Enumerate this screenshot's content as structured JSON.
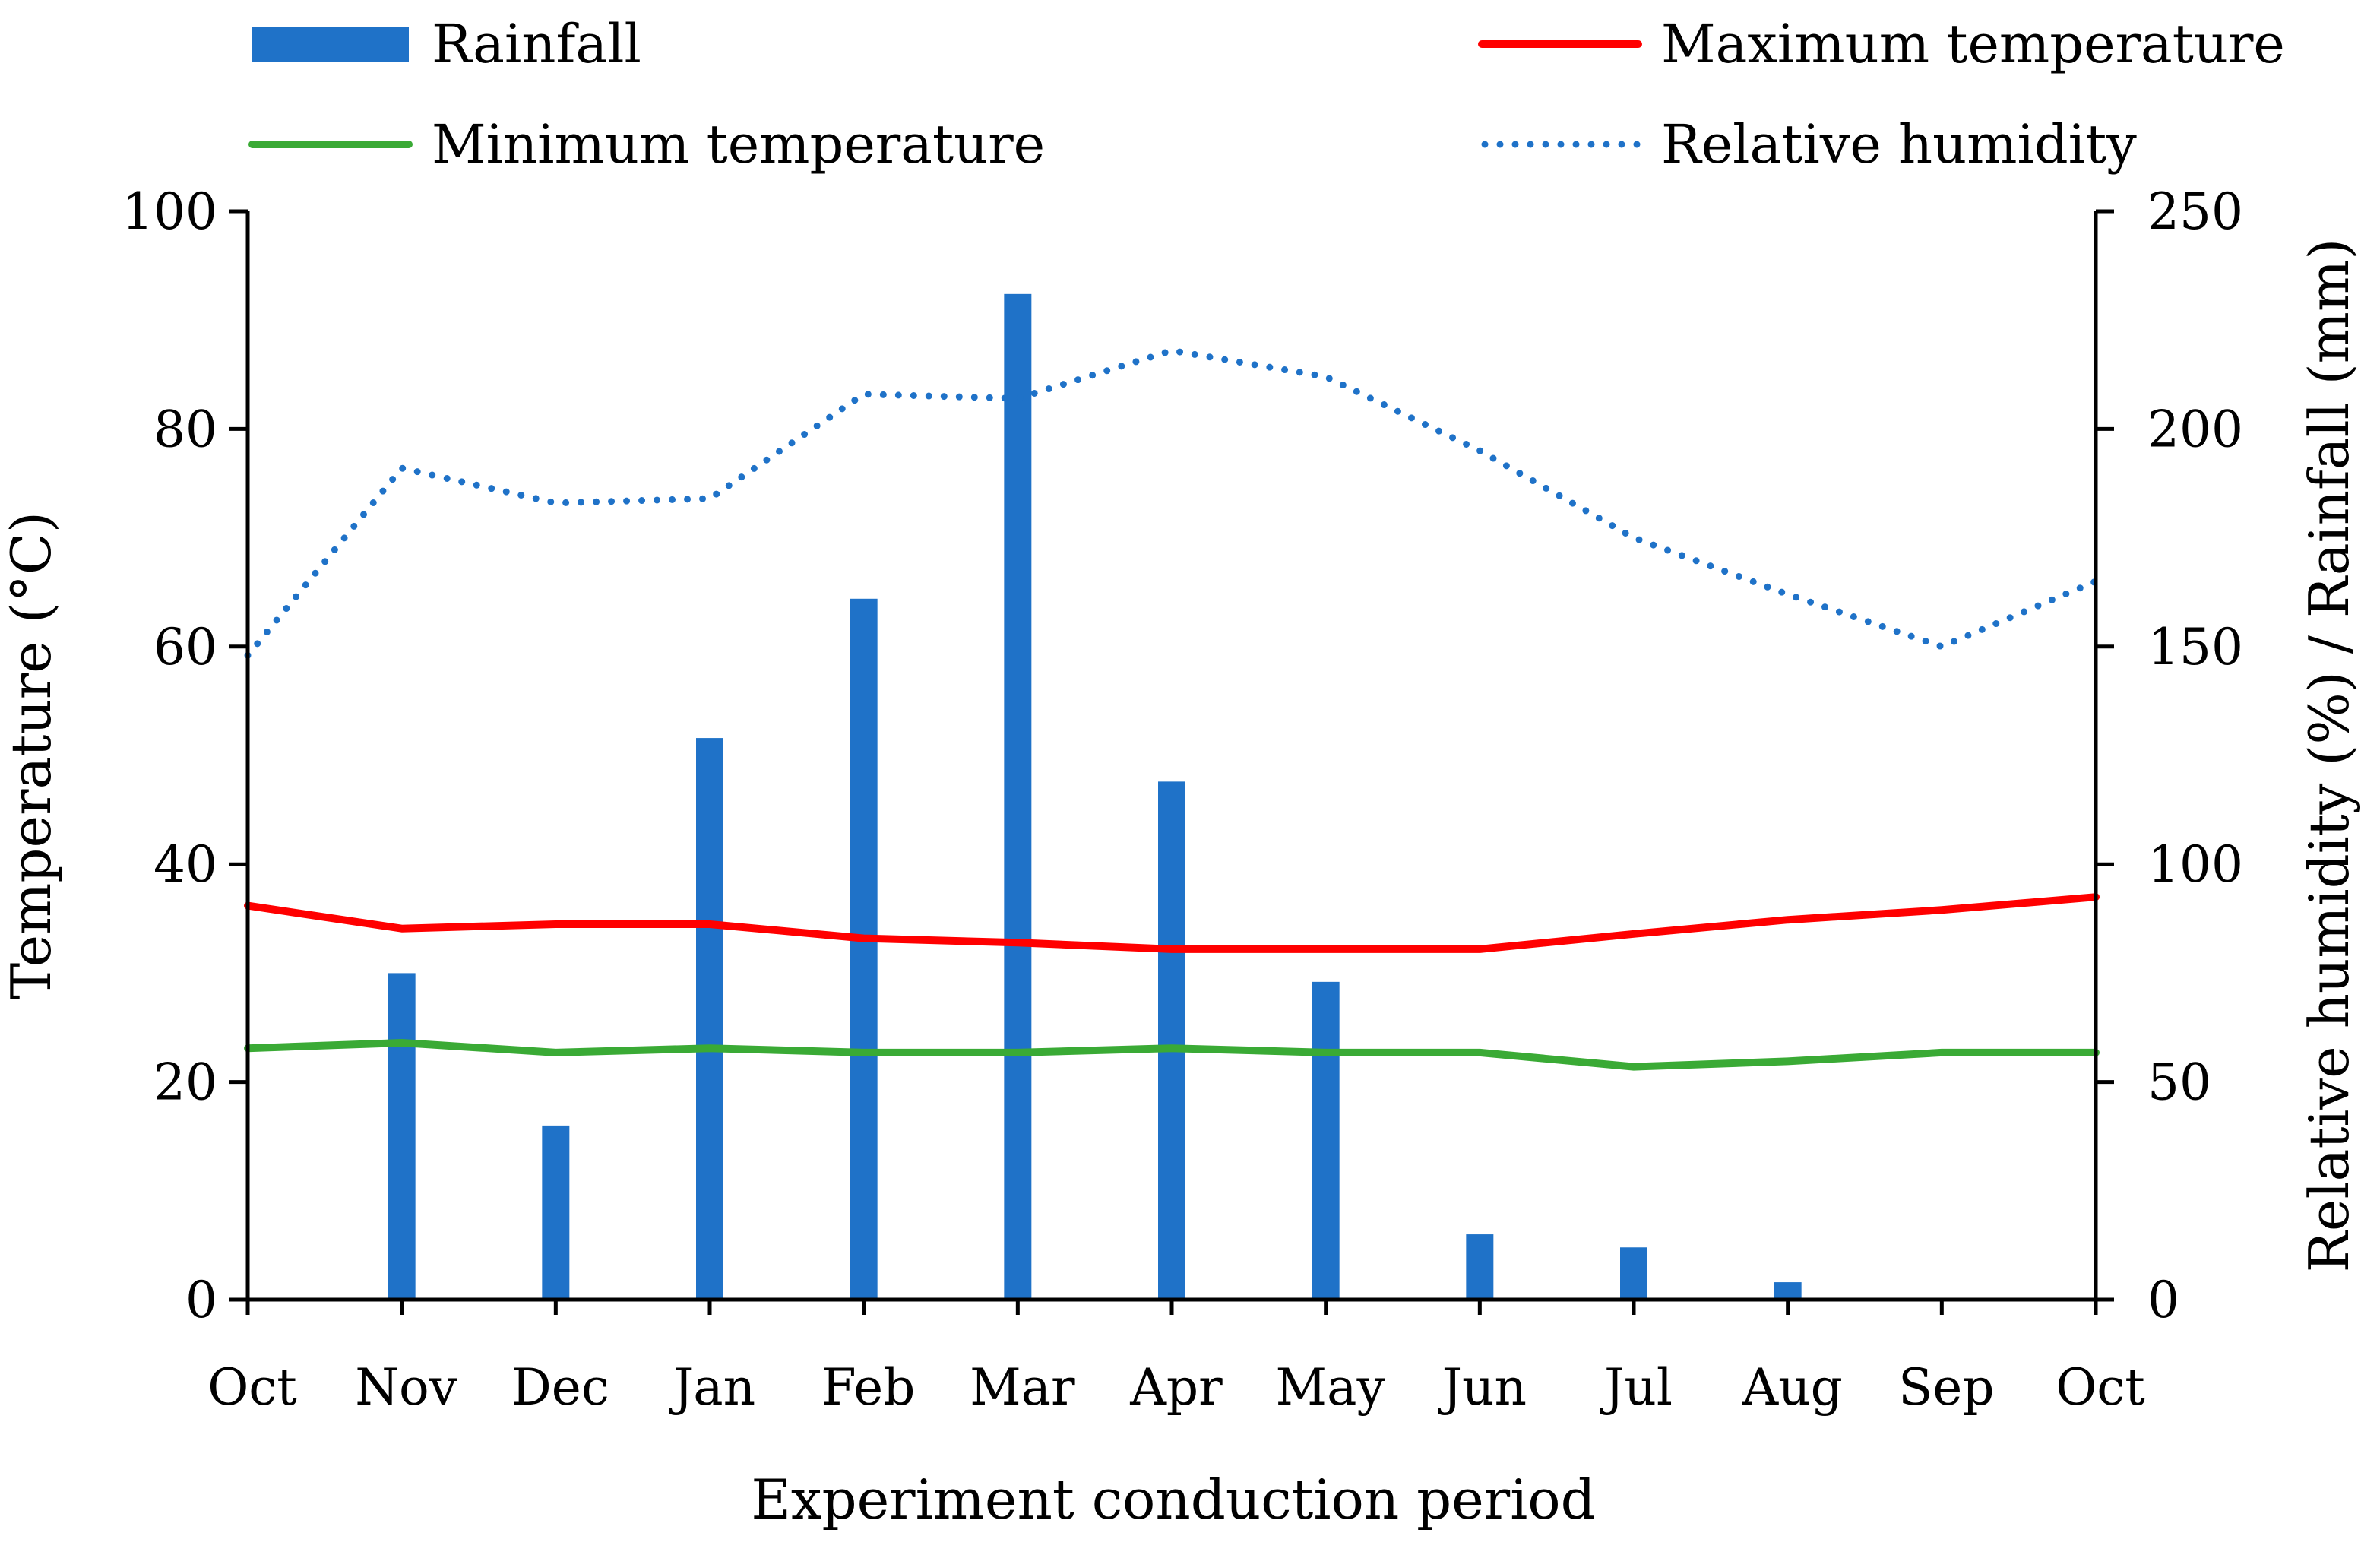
{
  "chart_data": {
    "type": "bar+line",
    "xlabel": "Experiment conduction period",
    "ylabel_left": "Temperature (°C)",
    "ylabel_right": "Relative humidity (%) / Rainfall (mm)",
    "ylim_left": [
      0,
      100
    ],
    "ylim_right": [
      0,
      250
    ],
    "yticks_left": [
      0,
      20,
      40,
      60,
      80,
      100
    ],
    "yticks_right": [
      0,
      50,
      100,
      150,
      200,
      250
    ],
    "categories": [
      "Oct",
      "Nov",
      "Dec",
      "Jan",
      "Feb",
      "Mar",
      "Apr",
      "May",
      "Jun",
      "Jul",
      "Aug",
      "Sep",
      "Oct"
    ],
    "legend_position": "top",
    "series": [
      {
        "name": "Rainfall",
        "kind": "bar",
        "axis": "right",
        "color": "#1f72c8",
        "values": [
          0,
          75,
          40,
          129,
          161,
          231,
          119,
          73,
          15,
          12,
          4,
          0,
          0
        ]
      },
      {
        "name": "Maximum temperature",
        "kind": "line",
        "axis": "left",
        "color": "#ff0000",
        "style": "solid",
        "values": [
          36.2,
          34.1,
          34.5,
          34.5,
          33.2,
          32.8,
          32.2,
          32.2,
          32.2,
          33.6,
          34.9,
          35.8,
          37.0
        ]
      },
      {
        "name": "Minimum temperature",
        "kind": "line",
        "axis": "left",
        "color": "#3aaa35",
        "style": "solid",
        "values": [
          23.1,
          23.6,
          22.7,
          23.1,
          22.7,
          22.7,
          23.1,
          22.7,
          22.7,
          21.4,
          21.9,
          22.7,
          22.7
        ]
      },
      {
        "name": "Relative humidity",
        "kind": "line",
        "axis": "right",
        "color": "#1f72c8",
        "style": "dotted",
        "values": [
          148,
          191,
          183,
          184,
          208,
          207,
          218,
          212,
          195,
          175,
          162,
          150,
          165
        ]
      }
    ]
  }
}
